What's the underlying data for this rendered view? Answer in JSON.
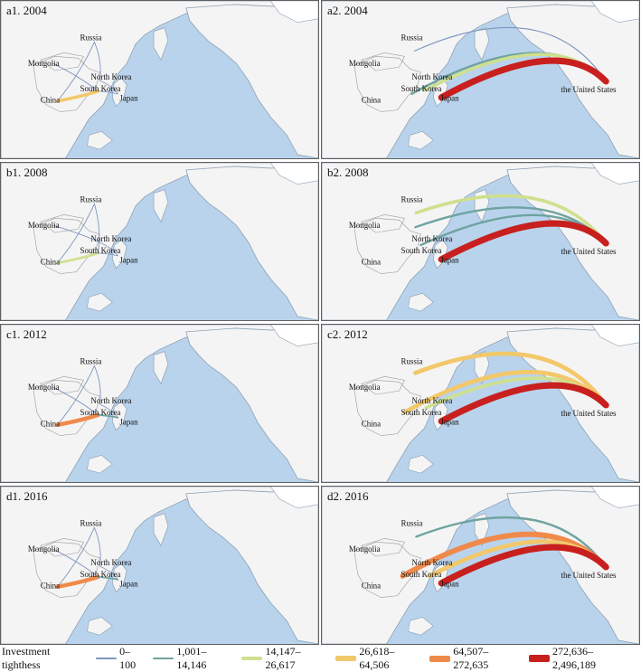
{
  "colors": {
    "ocean": "#b9d3ec",
    "land": "#f4f4f4",
    "coast": "#8da0b4",
    "greenland": "#ffffff"
  },
  "panels": [
    {
      "id": "a1",
      "title": "a1. 2004"
    },
    {
      "id": "a2",
      "title": "a2. 2004"
    },
    {
      "id": "b1",
      "title": "b1. 2008"
    },
    {
      "id": "b2",
      "title": "b2. 2008"
    },
    {
      "id": "c1",
      "title": "c1. 2012"
    },
    {
      "id": "c2",
      "title": "c2. 2012"
    },
    {
      "id": "d1",
      "title": "d1. 2016"
    },
    {
      "id": "d2",
      "title": "d2. 2016"
    }
  ],
  "countries": {
    "russia": "Russia",
    "mongolia": "Mongolia",
    "china": "China",
    "north_korea": "North Korea",
    "south_korea": "South Korea",
    "japan": "Japan",
    "united_states": "the United States"
  },
  "legend": {
    "title": "Investment tighthess",
    "classes": [
      {
        "label": "0–100",
        "color": "#7f96bf",
        "weight": 1
      },
      {
        "label": "1,001–14,146",
        "color": "#6fa3a0",
        "weight": 2
      },
      {
        "label": "14,147–26,617",
        "color": "#cfe08e",
        "weight": 3
      },
      {
        "label": "26,618–64,506",
        "color": "#f2c86b",
        "weight": 4
      },
      {
        "label": "64,507–272,635",
        "color": "#f08a4b",
        "weight": 5
      },
      {
        "label": "272,636–2,496,189",
        "color": "#c8201e",
        "weight": 6
      }
    ]
  }
}
